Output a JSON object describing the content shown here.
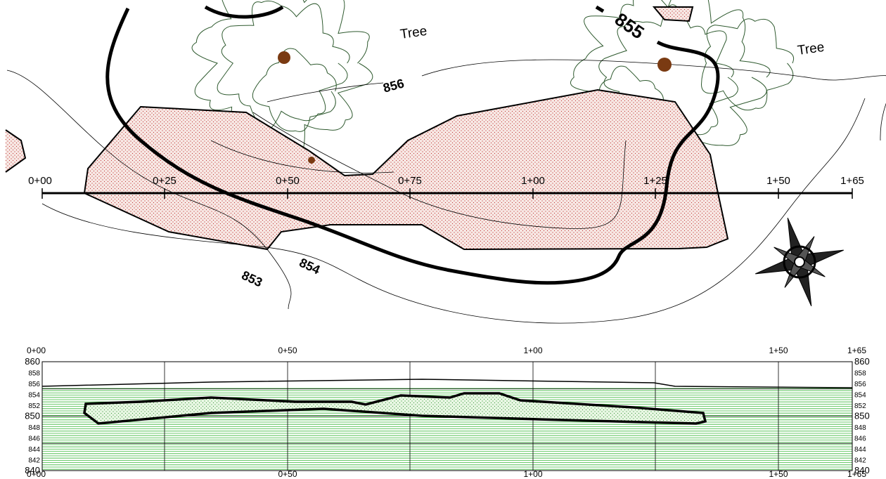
{
  "plan": {
    "stations": [
      "0+00",
      "0+25",
      "0+50",
      "0+75",
      "1+00",
      "1+25",
      "1+50",
      "1+65"
    ],
    "contours": [
      "853",
      "854",
      "855",
      "856"
    ],
    "tree_labels": [
      "Tree",
      "Tree"
    ]
  },
  "profile": {
    "stations": [
      "0+00",
      "0+50",
      "1+00",
      "1+50",
      "1+65"
    ],
    "elevations": [
      "860",
      "858",
      "856",
      "854",
      "852",
      "850",
      "848",
      "846",
      "844",
      "842",
      "840"
    ]
  }
}
